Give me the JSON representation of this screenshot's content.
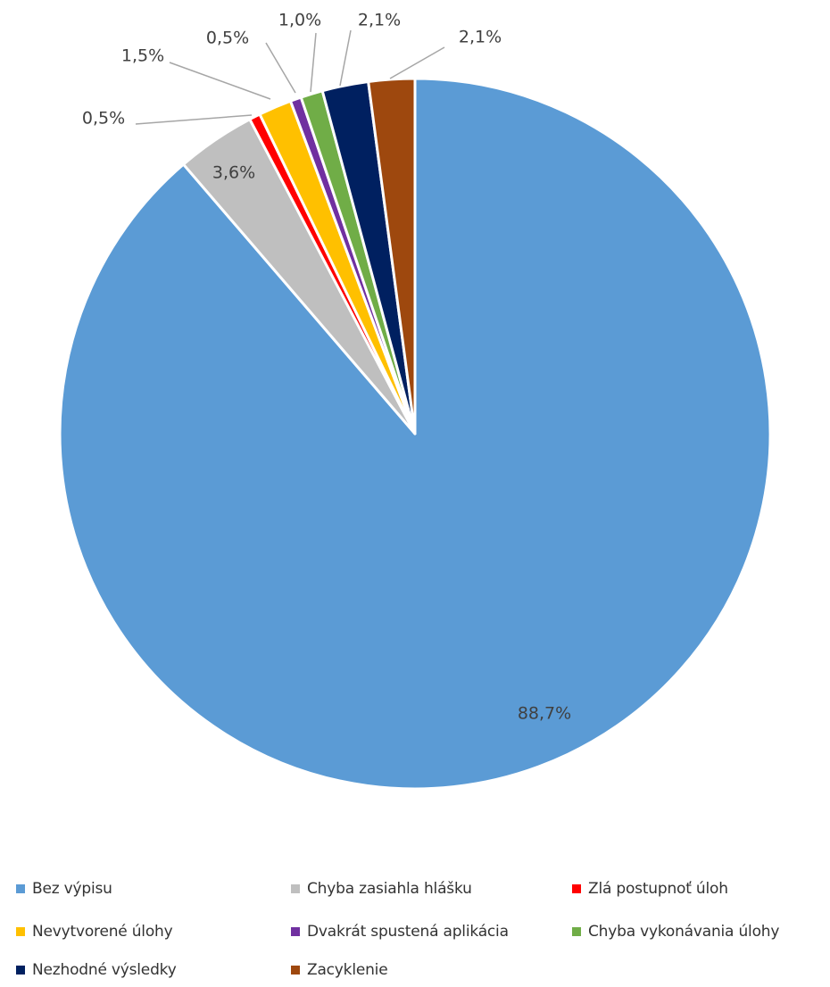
{
  "chart_data": {
    "type": "pie",
    "title": "",
    "legend_position": "bottom",
    "label_format": "one decimal with comma separator and percent sign",
    "slices": [
      {
        "name": "Bez výpisu",
        "value": 88.7,
        "label": "88,7%",
        "color": "#5B9BD5"
      },
      {
        "name": "Chyba zasiahla hlášku",
        "value": 3.6,
        "label": "3,6%",
        "color": "#BFBFBF"
      },
      {
        "name": "Zlá postupnoť úloh",
        "value": 0.5,
        "label": "0,5%",
        "color": "#FF0000"
      },
      {
        "name": "Nevytvorené úlohy",
        "value": 1.5,
        "label": "1,5%",
        "color": "#FFC000"
      },
      {
        "name": "Dvakrát spustená aplikácia",
        "value": 0.5,
        "label": "0,5%",
        "color": "#7030A0"
      },
      {
        "name": "Chyba vykonávania úlohy",
        "value": 1.0,
        "label": "1,0%",
        "color": "#70AD47"
      },
      {
        "name": "Nezhodné výsledky",
        "value": 2.1,
        "label": "2,1%",
        "color": "#002060"
      },
      {
        "name": "Zacyklenie",
        "value": 2.1,
        "label": "2,1%",
        "color": "#9E480E"
      }
    ],
    "leader_line_color": "#A6A6A6",
    "slice_border_color": "#FFFFFF"
  }
}
